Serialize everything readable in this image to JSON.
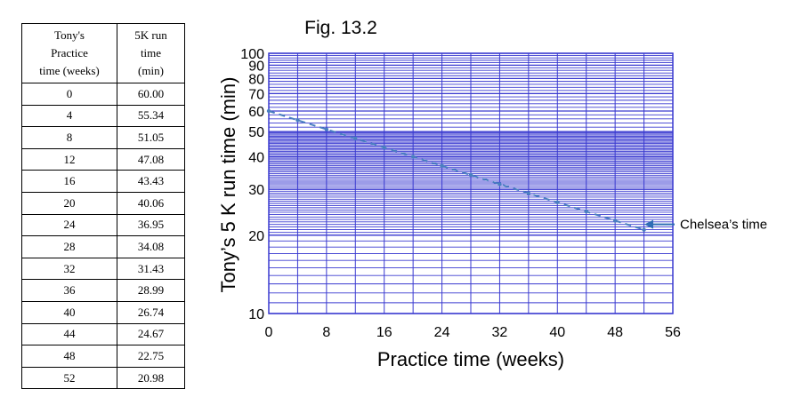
{
  "table": {
    "headers": [
      "Tony's Practice time (weeks)",
      "5K run time (min)"
    ],
    "header_lines": [
      [
        "Tony's",
        "Practice",
        "time (weeks)"
      ],
      [
        "5K run",
        "time",
        "(min)"
      ]
    ],
    "rows": [
      [
        "0",
        "60.00"
      ],
      [
        "4",
        "55.34"
      ],
      [
        "8",
        "51.05"
      ],
      [
        "12",
        "47.08"
      ],
      [
        "16",
        "43.43"
      ],
      [
        "20",
        "40.06"
      ],
      [
        "24",
        "36.95"
      ],
      [
        "28",
        "34.08"
      ],
      [
        "32",
        "31.43"
      ],
      [
        "36",
        "28.99"
      ],
      [
        "40",
        "26.74"
      ],
      [
        "44",
        "24.67"
      ],
      [
        "48",
        "22.75"
      ],
      [
        "52",
        "20.98"
      ]
    ]
  },
  "chart_data": {
    "type": "line",
    "title": "Fig. 13.2",
    "xlabel": "Practice time (weeks)",
    "ylabel": "Tony’s 5 K run time (min)",
    "x_scale": "linear",
    "y_scale": "log",
    "xlim": [
      0,
      56
    ],
    "ylim": [
      10,
      100
    ],
    "x_ticks": [
      0,
      8,
      16,
      24,
      32,
      40,
      48,
      56
    ],
    "y_ticks": [
      10,
      20,
      30,
      40,
      50,
      60,
      70,
      80,
      90,
      100
    ],
    "grid": true,
    "series": [
      {
        "line_style": "dashed",
        "color": "#4a7fc0",
        "x": [
          0,
          4,
          8,
          12,
          16,
          20,
          24,
          28,
          32,
          36,
          40,
          44,
          48,
          52
        ],
        "y": [
          60.0,
          55.34,
          51.05,
          47.08,
          43.43,
          40.06,
          36.95,
          34.08,
          31.43,
          28.99,
          26.74,
          24.67,
          22.75,
          20.98
        ]
      }
    ],
    "annotation": {
      "text": "Chelsea’s time",
      "y": 22,
      "arrow": "left"
    },
    "colors": {
      "grid": "#3a3ad0",
      "line": "#4a7fc0",
      "arrow": "#2f6db5"
    }
  }
}
